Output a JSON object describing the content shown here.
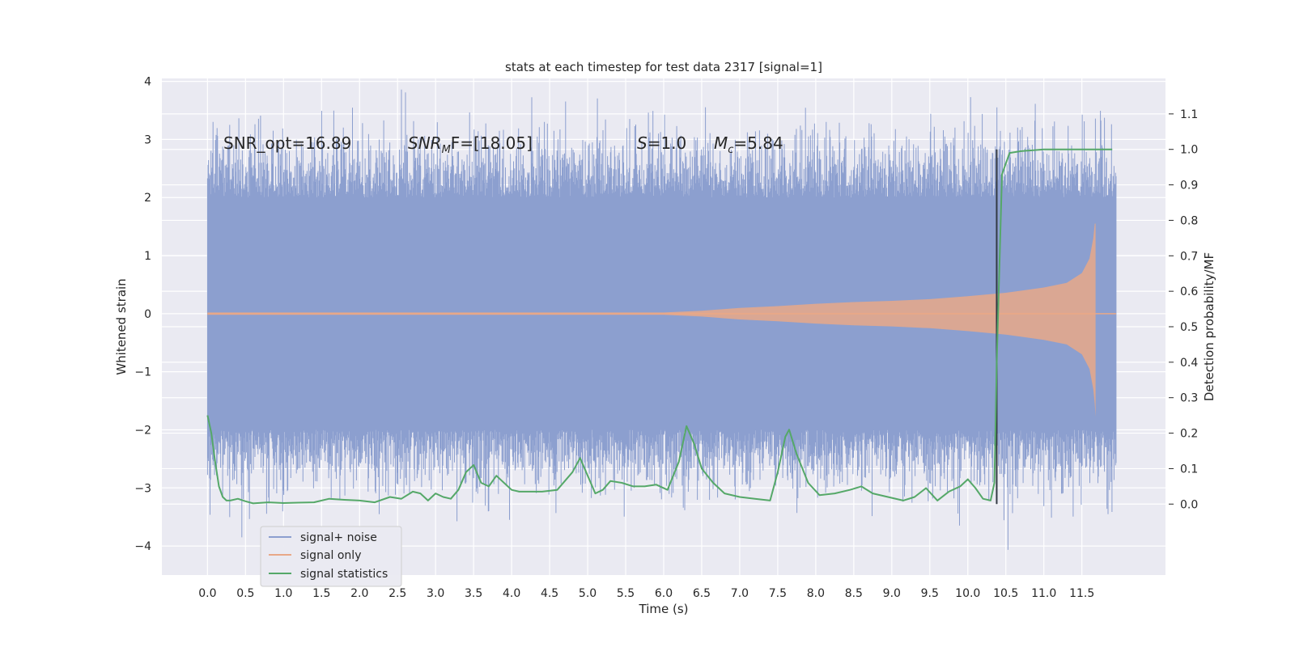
{
  "chart_data": {
    "type": "line",
    "title": "stats at each timestep for test data 2317 [signal=1]",
    "xlabel": "Time (s)",
    "ylabel": "Whitened strain",
    "ylabel_right": "Detection probability/MF",
    "xlim": [
      -0.6,
      12.6
    ],
    "ylim": [
      -4.5,
      4.05
    ],
    "ylim_right": [
      -0.2,
      1.2
    ],
    "x_ticks": [
      "0.0",
      "0.5",
      "1.0",
      "1.5",
      "2.0",
      "2.5",
      "3.0",
      "3.5",
      "4.0",
      "4.5",
      "5.0",
      "5.5",
      "6.0",
      "6.5",
      "7.0",
      "7.5",
      "8.0",
      "8.5",
      "9.0",
      "9.5",
      "10.0",
      "10.5",
      "11.0",
      "11.5"
    ],
    "y_ticks_left": [
      "−4",
      "−3",
      "−2",
      "−1",
      "0",
      "1",
      "2",
      "3",
      "4"
    ],
    "y_ticks_right": [
      "0.0",
      "0.1",
      "0.2",
      "0.3",
      "0.4",
      "0.5",
      "0.6",
      "0.7",
      "0.8",
      "0.9",
      "1.0",
      "1.1"
    ],
    "grid": true,
    "legend_placement": "lower-left",
    "annotations": {
      "snr_opt": "SNR_opt=16.89",
      "snr_mf_pre": "SNR",
      "snr_mf_sub": "M",
      "snr_mf_post": "F=[18.05]",
      "s_label": "S",
      "s_value": "=1.0",
      "mc_label": "M",
      "mc_sub": "c",
      "mc_value": "=5.84"
    },
    "marker_time": 10.38,
    "series": [
      {
        "name": "signal+ noise",
        "color": "#8c9fcf",
        "description": "whitened strain noise band",
        "band_extent": [
          -2.0,
          2.0
        ]
      },
      {
        "name": "signal only",
        "color": "#e8a888",
        "description": "chirp envelope",
        "envelope": {
          "x": [
            0.0,
            6.0,
            6.5,
            7.0,
            7.5,
            8.0,
            8.5,
            9.0,
            9.5,
            10.0,
            10.5,
            11.0,
            11.3,
            11.5,
            11.6,
            11.65,
            11.67,
            11.68
          ],
          "y": [
            0.02,
            0.02,
            0.05,
            0.1,
            0.13,
            0.17,
            0.2,
            0.22,
            0.25,
            0.3,
            0.36,
            0.45,
            0.53,
            0.7,
            0.95,
            1.3,
            1.55,
            1.55
          ]
        }
      },
      {
        "name": "signal statistics",
        "color": "#55a868",
        "axis": "right",
        "x": [
          0.0,
          0.05,
          0.1,
          0.15,
          0.2,
          0.25,
          0.3,
          0.4,
          0.5,
          0.6,
          0.8,
          1.0,
          1.2,
          1.4,
          1.6,
          1.8,
          2.0,
          2.2,
          2.4,
          2.55,
          2.7,
          2.8,
          2.9,
          3.0,
          3.1,
          3.2,
          3.3,
          3.4,
          3.5,
          3.6,
          3.7,
          3.8,
          3.9,
          4.0,
          4.1,
          4.2,
          4.4,
          4.6,
          4.8,
          4.9,
          5.0,
          5.1,
          5.2,
          5.3,
          5.45,
          5.6,
          5.75,
          5.9,
          6.05,
          6.2,
          6.3,
          6.4,
          6.5,
          6.65,
          6.8,
          7.0,
          7.2,
          7.4,
          7.5,
          7.6,
          7.65,
          7.75,
          7.9,
          8.05,
          8.25,
          8.45,
          8.6,
          8.75,
          8.95,
          9.15,
          9.3,
          9.45,
          9.6,
          9.75,
          9.9,
          10.0,
          10.1,
          10.2,
          10.3,
          10.35,
          10.38,
          10.45,
          10.55,
          10.7,
          11.0,
          11.2,
          11.5,
          11.9
        ],
        "y": [
          0.25,
          0.2,
          0.12,
          0.05,
          0.02,
          0.01,
          0.01,
          0.015,
          0.008,
          0.002,
          0.005,
          0.003,
          0.004,
          0.005,
          0.015,
          0.012,
          0.01,
          0.005,
          0.02,
          0.015,
          0.035,
          0.03,
          0.01,
          0.03,
          0.02,
          0.015,
          0.04,
          0.09,
          0.11,
          0.06,
          0.05,
          0.08,
          0.06,
          0.04,
          0.035,
          0.035,
          0.035,
          0.04,
          0.09,
          0.13,
          0.08,
          0.03,
          0.04,
          0.065,
          0.06,
          0.05,
          0.05,
          0.055,
          0.04,
          0.12,
          0.22,
          0.17,
          0.1,
          0.06,
          0.03,
          0.02,
          0.015,
          0.01,
          0.09,
          0.19,
          0.21,
          0.14,
          0.06,
          0.025,
          0.03,
          0.04,
          0.05,
          0.03,
          0.02,
          0.01,
          0.02,
          0.045,
          0.01,
          0.035,
          0.05,
          0.07,
          0.045,
          0.015,
          0.01,
          0.06,
          0.4,
          0.93,
          0.99,
          0.995,
          1.0,
          1.0,
          1.0,
          1.0
        ]
      }
    ]
  }
}
